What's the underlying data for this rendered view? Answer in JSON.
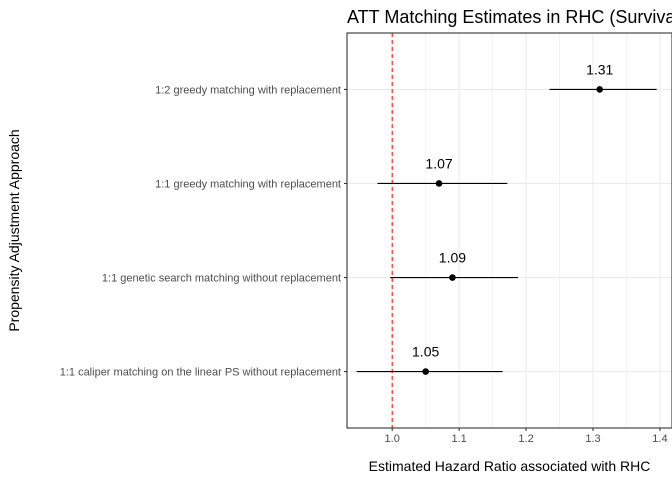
{
  "chart_data": {
    "type": "scatter",
    "subtype": "forest-plot",
    "title": "ATT Matching Estimates in RHC (Survival",
    "xlabel": "Estimated Hazard Ratio associated with RHC",
    "ylabel": "Propensity Adjustment Approach",
    "xlim": [
      0.9325,
      1.418
    ],
    "x_ticks": [
      "1.0",
      "1.1",
      "1.2",
      "1.3",
      "1.4"
    ],
    "x_tick_values": [
      1.0,
      1.1,
      1.2,
      1.3,
      1.4
    ],
    "grid": true,
    "reference_line": {
      "x": 1.0,
      "color": "#ff0000",
      "style": "dashed"
    },
    "categories": [
      "1:2 greedy matching with replacement",
      "1:1 greedy matching with replacement",
      "1:1 genetic search matching without replacement",
      "1:1 caliper matching on the linear PS without replacement"
    ],
    "estimates": [
      1.31,
      1.07,
      1.09,
      1.05
    ],
    "ci_lower": [
      1.235,
      0.978,
      0.997,
      0.947
    ],
    "ci_upper": [
      1.395,
      1.172,
      1.188,
      1.165
    ],
    "labels": [
      "1.31",
      "1.07",
      "1.09",
      "1.05"
    ],
    "colors": {
      "point": "#000000",
      "panel_border": "#333333",
      "grid": "#ebebeb",
      "reference": "#ff0000"
    }
  }
}
